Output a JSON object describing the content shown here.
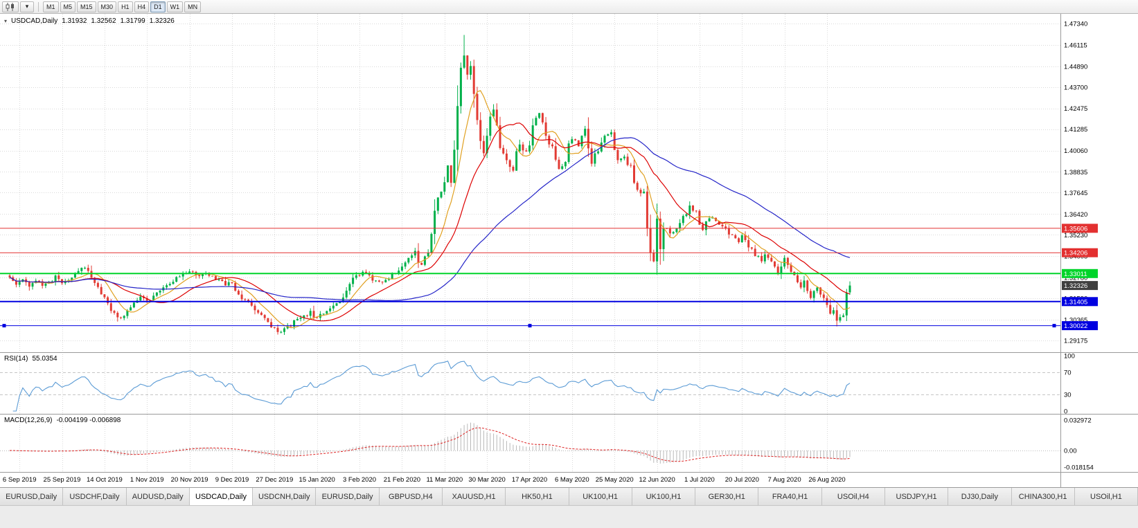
{
  "toolbar": {
    "chart_type_tooltip": "Candlesticks",
    "timeframes": [
      {
        "label": "M1",
        "active": false
      },
      {
        "label": "M5",
        "active": false
      },
      {
        "label": "M15",
        "active": false
      },
      {
        "label": "M30",
        "active": false
      },
      {
        "label": "H1",
        "active": false
      },
      {
        "label": "H4",
        "active": false
      },
      {
        "label": "D1",
        "active": true
      },
      {
        "label": "W1",
        "active": false
      },
      {
        "label": "MN",
        "active": false
      }
    ]
  },
  "chart": {
    "symbol_label": "USDCAD,Daily",
    "ohlc": {
      "open": "1.31932",
      "high": "1.32562",
      "low": "1.31799",
      "close": "1.32326"
    },
    "current_price": "1.32326",
    "price_axis": [
      "1.47340",
      "1.46115",
      "1.44890",
      "1.43700",
      "1.42475",
      "1.41285",
      "1.40060",
      "1.38835",
      "1.37645",
      "1.36420",
      "1.35230",
      "1.34005",
      "1.32780",
      "1.31590",
      "1.30365",
      "1.29175"
    ],
    "date_axis": [
      "6 Sep 2019",
      "25 Sep 2019",
      "14 Oct 2019",
      "1 Nov 2019",
      "20 Nov 2019",
      "9 Dec 2019",
      "27 Dec 2019",
      "15 Jan 2020",
      "3 Feb 2020",
      "21 Feb 2020",
      "11 Mar 2020",
      "30 Mar 2020",
      "17 Apr 2020",
      "6 May 2020",
      "25 May 2020",
      "12 Jun 2020",
      "1 Jul 2020",
      "20 Jul 2020",
      "7 Aug 2020",
      "26 Aug 2020"
    ],
    "hlines": [
      {
        "value": 1.35606,
        "label": "1.35606",
        "color": "#e33030",
        "width": 1,
        "selected": false
      },
      {
        "value": 1.34206,
        "label": "1.34206",
        "color": "#e33030",
        "width": 1,
        "selected": false
      },
      {
        "value": 1.33011,
        "label": "1.33011",
        "color": "#00d42a",
        "width": 2,
        "selected": false
      },
      {
        "value": 1.31405,
        "label": "1.31405",
        "color": "#0000e0",
        "width": 2,
        "selected": false
      },
      {
        "value": 1.30022,
        "label": "1.30022",
        "color": "#0000e0",
        "width": 1,
        "selected": true
      }
    ],
    "colors": {
      "up": "#00b04a",
      "down": "#e23b34",
      "ma_fast": "#e0a020",
      "ma_mid": "#dd0000",
      "ma_slow": "#2424c8",
      "grid": "#d9d9d9",
      "rsi": "#5b9bd5",
      "macd_hist": "#b8b8b8",
      "macd_signal": "#dd2222",
      "badge_current": "#3f3f3f",
      "axis_text": "#000000"
    }
  },
  "rsi": {
    "label": "RSI(14)",
    "value": "55.0354",
    "axis": [
      "100",
      "70",
      "30",
      "0"
    ],
    "levels": [
      70,
      30
    ]
  },
  "macd": {
    "label": "MACD(12,26,9)",
    "values": "-0.004199 -0.006898",
    "axis_top": "0.032972",
    "axis_zero": "0.00",
    "axis_bottom": "-0.018154"
  },
  "tabs": [
    {
      "label": "EURUSD,Daily",
      "active": false
    },
    {
      "label": "USDCHF,Daily",
      "active": false
    },
    {
      "label": "AUDUSD,Daily",
      "active": false
    },
    {
      "label": "USDCAD,Daily",
      "active": true
    },
    {
      "label": "USDCNH,Daily",
      "active": false
    },
    {
      "label": "EURUSD,Daily",
      "active": false
    },
    {
      "label": "GBPUSD,H4",
      "active": false
    },
    {
      "label": "XAUUSD,H1",
      "active": false
    },
    {
      "label": "HK50,H1",
      "active": false
    },
    {
      "label": "UK100,H1",
      "active": false
    },
    {
      "label": "UK100,H1",
      "active": false
    },
    {
      "label": "GER30,H1",
      "active": false
    },
    {
      "label": "FRA40,H1",
      "active": false
    },
    {
      "label": "USOil,H4",
      "active": false
    },
    {
      "label": "USDJPY,H1",
      "active": false
    },
    {
      "label": "DJ30,Daily",
      "active": false
    },
    {
      "label": "CHINA300,H1",
      "active": false
    },
    {
      "label": "USOil,H1",
      "active": false
    }
  ],
  "chart_data": {
    "type": "candlestick",
    "symbol": "USDCAD",
    "timeframe": "Daily",
    "bars_total": 258,
    "bars_per_date_tick": 13,
    "first_tick_bar": 3,
    "seed": 11,
    "price_range": [
      1.285,
      1.479
    ],
    "last_candle": {
      "o": 1.31932,
      "h": 1.32562,
      "l": 1.31799,
      "c": 1.32326
    },
    "extremes": [
      {
        "bar": 139,
        "high": 1.4669
      },
      {
        "bar": 82,
        "low": 1.2951
      },
      {
        "bar": 208,
        "high": 1.3715
      },
      {
        "bar": 253,
        "low": 1.2998
      }
    ],
    "close_path": [
      [
        0,
        1.328
      ],
      [
        2,
        1.3237
      ],
      [
        4,
        1.3268
      ],
      [
        6,
        1.3226
      ],
      [
        8,
        1.326
      ],
      [
        10,
        1.3231
      ],
      [
        12,
        1.3254
      ],
      [
        14,
        1.329
      ],
      [
        16,
        1.3246
      ],
      [
        18,
        1.3262
      ],
      [
        20,
        1.3298
      ],
      [
        22,
        1.3334
      ],
      [
        24,
        1.3316
      ],
      [
        26,
        1.3247
      ],
      [
        28,
        1.3182
      ],
      [
        30,
        1.3131
      ],
      [
        32,
        1.3076
      ],
      [
        34,
        1.3046
      ],
      [
        36,
        1.3089
      ],
      [
        38,
        1.3134
      ],
      [
        40,
        1.3169
      ],
      [
        42,
        1.3146
      ],
      [
        44,
        1.3174
      ],
      [
        46,
        1.3204
      ],
      [
        48,
        1.3234
      ],
      [
        50,
        1.3254
      ],
      [
        52,
        1.3284
      ],
      [
        54,
        1.3304
      ],
      [
        56,
        1.3311
      ],
      [
        58,
        1.3286
      ],
      [
        60,
        1.3301
      ],
      [
        62,
        1.3287
      ],
      [
        64,
        1.3267
      ],
      [
        66,
        1.3233
      ],
      [
        68,
        1.3247
      ],
      [
        70,
        1.3181
      ],
      [
        72,
        1.3151
      ],
      [
        74,
        1.3117
      ],
      [
        76,
        1.3077
      ],
      [
        78,
        1.3046
      ],
      [
        80,
        1.2993
      ],
      [
        82,
        1.2966
      ],
      [
        84,
        1.2987
      ],
      [
        86,
        1.2997
      ],
      [
        88,
        1.3041
      ],
      [
        90,
        1.3061
      ],
      [
        92,
        1.3087
      ],
      [
        94,
        1.3047
      ],
      [
        96,
        1.3071
      ],
      [
        98,
        1.3101
      ],
      [
        100,
        1.3131
      ],
      [
        102,
        1.3164
      ],
      [
        104,
        1.3241
      ],
      [
        106,
        1.3291
      ],
      [
        108,
        1.3311
      ],
      [
        110,
        1.3291
      ],
      [
        112,
        1.3261
      ],
      [
        114,
        1.3251
      ],
      [
        116,
        1.3271
      ],
      [
        118,
        1.3301
      ],
      [
        120,
        1.3341
      ],
      [
        122,
        1.3391
      ],
      [
        124,
        1.3431
      ],
      [
        126,
        1.3351
      ],
      [
        128,
        1.3421
      ],
      [
        130,
        1.3661
      ],
      [
        132,
        1.3771
      ],
      [
        134,
        1.3921
      ],
      [
        135,
        1.3821
      ],
      [
        136,
        1.4011
      ],
      [
        137,
        1.4261
      ],
      [
        138,
        1.4481
      ],
      [
        139,
        1.4551
      ],
      [
        140,
        1.4441
      ],
      [
        141,
        1.4491
      ],
      [
        142,
        1.4331
      ],
      [
        143,
        1.4181
      ],
      [
        144,
        1.4061
      ],
      [
        145,
        1.3991
      ],
      [
        146,
        1.4091
      ],
      [
        147,
        1.4201
      ],
      [
        148,
        1.4241
      ],
      [
        149,
        1.4151
      ],
      [
        150,
        1.4021
      ],
      [
        152,
        1.3951
      ],
      [
        154,
        1.3891
      ],
      [
        156,
        1.4041
      ],
      [
        158,
        1.4001
      ],
      [
        160,
        1.4151
      ],
      [
        162,
        1.4221
      ],
      [
        164,
        1.4091
      ],
      [
        166,
        1.4031
      ],
      [
        168,
        1.3901
      ],
      [
        170,
        1.3941
      ],
      [
        172,
        1.4071
      ],
      [
        174,
        1.4031
      ],
      [
        176,
        1.4131
      ],
      [
        178,
        1.3931
      ],
      [
        180,
        1.4001
      ],
      [
        182,
        1.4091
      ],
      [
        184,
        1.4111
      ],
      [
        186,
        1.3951
      ],
      [
        188,
        1.3971
      ],
      [
        190,
        1.3921
      ],
      [
        191,
        1.3821
      ],
      [
        192,
        1.3781
      ],
      [
        193,
        1.3761
      ],
      [
        194,
        1.3771
      ],
      [
        195,
        1.3561
      ],
      [
        196,
        1.3421
      ],
      [
        197,
        1.3371
      ],
      [
        198,
        1.3616
      ],
      [
        199,
        1.3441
      ],
      [
        200,
        1.3561
      ],
      [
        202,
        1.3531
      ],
      [
        204,
        1.3561
      ],
      [
        206,
        1.3631
      ],
      [
        208,
        1.3691
      ],
      [
        210,
        1.3661
      ],
      [
        211,
        1.3581
      ],
      [
        212,
        1.3551
      ],
      [
        213,
        1.3601
      ],
      [
        215,
        1.3621
      ],
      [
        217,
        1.3581
      ],
      [
        219,
        1.3561
      ],
      [
        221,
        1.3521
      ],
      [
        223,
        1.3481
      ],
      [
        224,
        1.3521
      ],
      [
        226,
        1.3451
      ],
      [
        228,
        1.3401
      ],
      [
        230,
        1.3371
      ],
      [
        231,
        1.3411
      ],
      [
        232,
        1.3391
      ],
      [
        234,
        1.3341
      ],
      [
        235,
        1.3301
      ],
      [
        236,
        1.3341
      ],
      [
        237,
        1.3391
      ],
      [
        238,
        1.3351
      ],
      [
        239,
        1.3311
      ],
      [
        240,
        1.3291
      ],
      [
        241,
        1.3251
      ],
      [
        242,
        1.3221
      ],
      [
        243,
        1.3261
      ],
      [
        244,
        1.3201
      ],
      [
        245,
        1.3161
      ],
      [
        246,
        1.3201
      ],
      [
        247,
        1.3221
      ],
      [
        248,
        1.3181
      ],
      [
        249,
        1.3161
      ],
      [
        250,
        1.3121
      ],
      [
        251,
        1.3071
      ],
      [
        252,
        1.3091
      ],
      [
        253,
        1.3031
      ],
      [
        254,
        1.3051
      ],
      [
        255,
        1.3061
      ],
      [
        256,
        1.319
      ],
      [
        257,
        1.32326
      ]
    ],
    "moving_averages": [
      {
        "period": 8,
        "color": "#e0a020"
      },
      {
        "period": 20,
        "color": "#dd0000"
      },
      {
        "period": 55,
        "color": "#2424c8"
      }
    ],
    "rsi_period": 14,
    "macd": {
      "fast": 12,
      "slow": 26,
      "signal": 9
    },
    "horizontal_lines": [
      1.35606,
      1.34206,
      1.33011,
      1.31405,
      1.30022
    ]
  }
}
